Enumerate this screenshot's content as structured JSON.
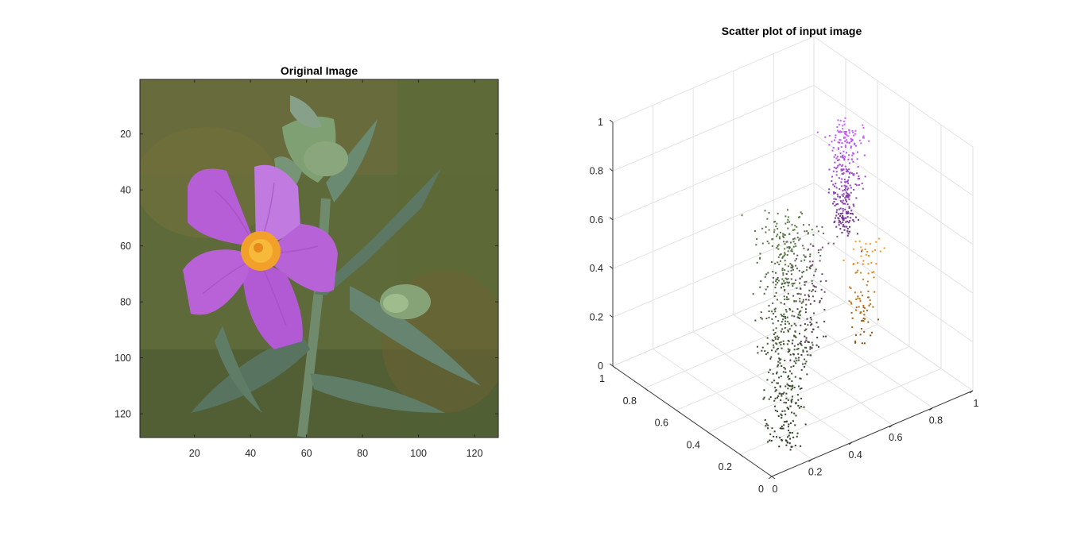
{
  "chart_data": [
    {
      "type": "image",
      "title": "Original Image",
      "x_ticks": [
        "20",
        "40",
        "60",
        "80",
        "100",
        "120"
      ],
      "y_ticks": [
        "20",
        "40",
        "60",
        "80",
        "100",
        "120"
      ],
      "xlim": [
        0.5,
        128.5
      ],
      "ylim": [
        0.5,
        128.5
      ],
      "y_direction": "reverse",
      "content": "photograph of a purple flower with orange center and grey-green leaves",
      "colors": {
        "background": "#5e6a3a",
        "petal": "#b55ed6",
        "petal_light": "#c77fe2",
        "center": "#f1a02a",
        "leaf": "#5f7a66",
        "leaf_light": "#86a08a",
        "bud": "#7fa073"
      }
    },
    {
      "type": "scatter3d",
      "title": "Scatter plot of input image",
      "xlim": [
        0,
        1
      ],
      "ylim": [
        0,
        1
      ],
      "zlim": [
        0,
        1
      ],
      "x_ticks": [
        "0",
        "0.2",
        "0.4",
        "0.6",
        "0.8",
        "1"
      ],
      "y_ticks": [
        "0",
        "0.2",
        "0.4",
        "0.6",
        "0.8",
        "1"
      ],
      "z_ticks": [
        "0",
        "0.2",
        "0.4",
        "0.6",
        "0.8",
        "1"
      ],
      "grid": true,
      "point_color": "pixel RGB color",
      "clusters": [
        {
          "color": "#4f6a3e",
          "x_range": [
            0.1,
            0.45
          ],
          "y_range": [
            0.05,
            0.45
          ],
          "z_range": [
            0.0,
            0.85
          ],
          "count": 520
        },
        {
          "color": "#b353e8",
          "x_range": [
            0.6,
            0.8
          ],
          "y_range": [
            0.3,
            0.55
          ],
          "z_range": [
            0.6,
            1.0
          ],
          "count": 300
        },
        {
          "color": "#e58a20",
          "x_range": [
            0.75,
            0.98
          ],
          "y_range": [
            0.4,
            0.6
          ],
          "z_range": [
            0.05,
            0.45
          ],
          "count": 90
        },
        {
          "color": "#6e4f66",
          "x_range": [
            0.3,
            0.7
          ],
          "y_range": [
            0.2,
            0.55
          ],
          "z_range": [
            0.2,
            0.65
          ],
          "count": 110
        }
      ]
    }
  ]
}
